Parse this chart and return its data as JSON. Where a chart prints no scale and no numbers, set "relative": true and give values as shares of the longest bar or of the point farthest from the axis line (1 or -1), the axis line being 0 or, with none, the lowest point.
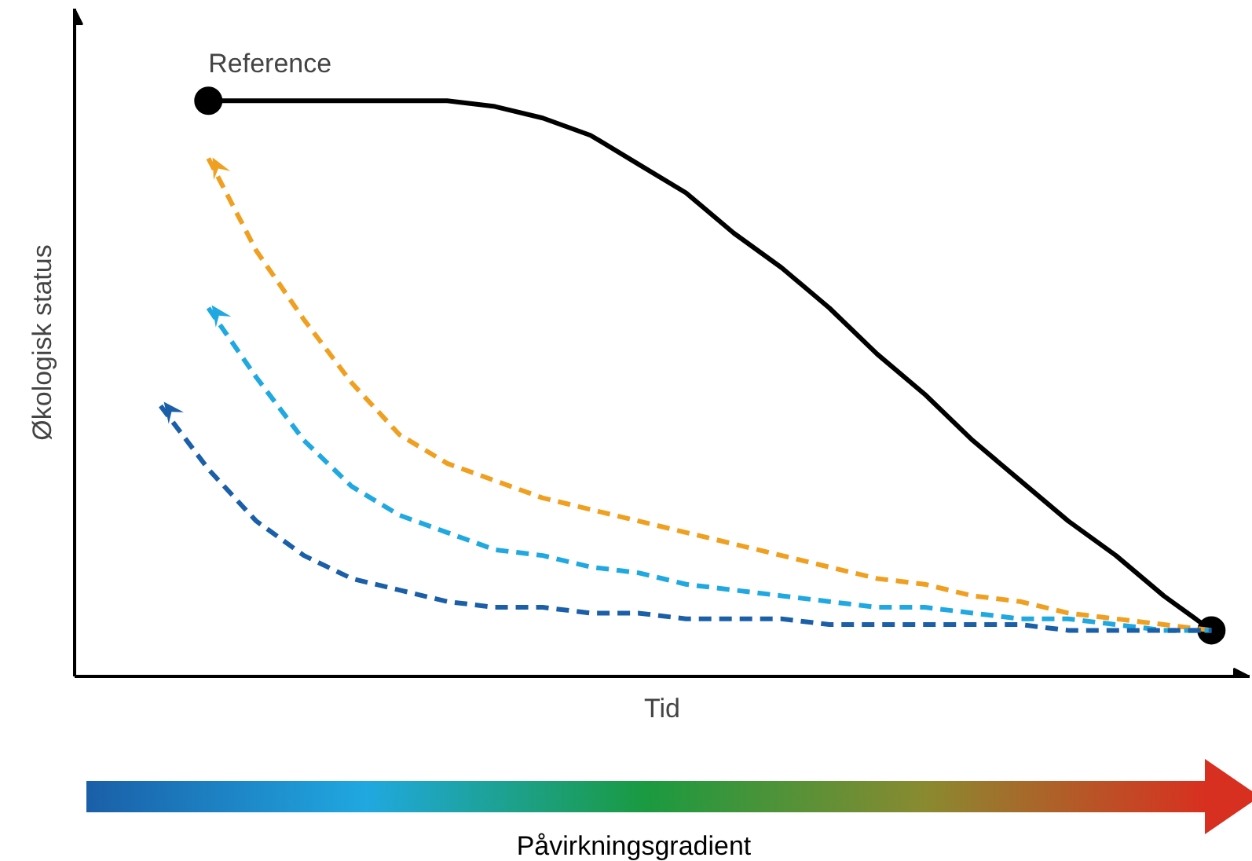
{
  "chart_data": {
    "type": "line",
    "relative": true,
    "xlabel": "Tid",
    "ylabel": "Økologisk status",
    "categories": [
      null,
      null,
      null,
      null,
      null,
      null,
      null,
      null,
      null,
      null,
      null,
      null,
      null,
      null,
      null,
      null,
      null,
      null,
      null,
      null,
      null,
      null,
      null
    ],
    "series": [
      {
        "color": "#000000",
        "line_style": "solid",
        "values": [
          null,
          1.0,
          1.0,
          1.0,
          1.0,
          1.0,
          1.0,
          0.99,
          0.97,
          0.94,
          0.89,
          0.84,
          0.77,
          0.71,
          0.64,
          0.56,
          0.49,
          0.41,
          0.34,
          0.27,
          0.21,
          0.14,
          0.08
        ]
      },
      {
        "color": "#f0a020",
        "line_style": "dashed",
        "values": [
          null,
          0.9,
          0.74,
          0.62,
          0.51,
          0.42,
          0.37,
          0.34,
          0.31,
          0.29,
          0.27,
          0.25,
          0.23,
          0.21,
          0.19,
          0.17,
          0.16,
          0.14,
          0.13,
          0.11,
          0.1,
          0.09,
          0.08
        ]
      },
      {
        "color": "#20a8e0",
        "line_style": "dashed",
        "values": [
          null,
          0.64,
          0.52,
          0.41,
          0.33,
          0.28,
          0.25,
          0.22,
          0.21,
          0.19,
          0.18,
          0.16,
          0.15,
          0.14,
          0.13,
          0.12,
          0.12,
          0.11,
          0.1,
          0.1,
          0.09,
          0.08,
          0.08
        ]
      },
      {
        "color": "#1a5fa8",
        "line_style": "dashed",
        "values": [
          0.47,
          0.36,
          0.27,
          0.21,
          0.17,
          0.15,
          0.13,
          0.12,
          0.12,
          0.11,
          0.11,
          0.1,
          0.1,
          0.1,
          0.09,
          0.09,
          0.09,
          0.09,
          0.09,
          0.08,
          0.08,
          0.08,
          0.08
        ]
      }
    ],
    "annotations": [
      "Reference",
      "Påvirkningsgradient"
    ]
  }
}
